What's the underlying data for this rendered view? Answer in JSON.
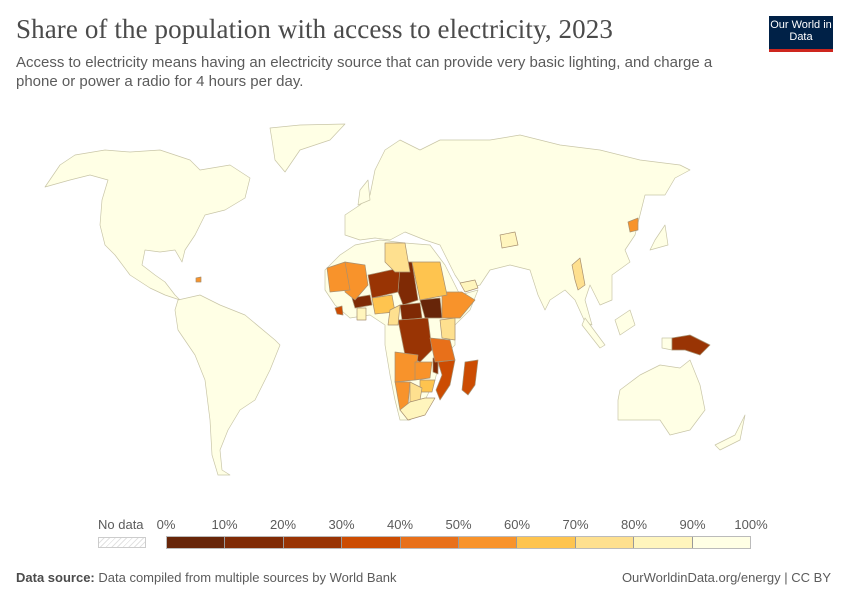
{
  "header": {
    "title": "Share of the population with access to electricity, 2023",
    "subtitle": "Access to electricity means having an electricity source that can provide very basic lighting, and charge a phone or power a radio for 4 hours per day.",
    "logo_text": "Our World in Data",
    "logo_colors": {
      "background": "#002147",
      "underline": "#ce261e"
    }
  },
  "footer": {
    "source_label": "Data source:",
    "source_text": "Data compiled from multiple sources by World Bank",
    "url": "OurWorldinData.org/energy | CC BY"
  },
  "chart_data": {
    "type": "choropleth-map",
    "title": "Share of the population with access to electricity, 2023",
    "year": 2023,
    "legend": {
      "no_data_label": "No data",
      "ticks": [
        "0%",
        "10%",
        "20%",
        "30%",
        "40%",
        "50%",
        "60%",
        "70%",
        "80%",
        "90%",
        "100%"
      ],
      "bins": [
        {
          "range": "0-10%",
          "color": "#672509"
        },
        {
          "range": "10-20%",
          "color": "#7f2a05"
        },
        {
          "range": "20-30%",
          "color": "#993404"
        },
        {
          "range": "30-40%",
          "color": "#cc4c02"
        },
        {
          "range": "40-50%",
          "color": "#e8701a"
        },
        {
          "range": "50-60%",
          "color": "#f8932b"
        },
        {
          "range": "60-70%",
          "color": "#fec44f"
        },
        {
          "range": "70-80%",
          "color": "#fee08f"
        },
        {
          "range": "80-90%",
          "color": "#fff5bd"
        },
        {
          "range": "90-100%",
          "color": "#ffffe5"
        }
      ],
      "placement": "bottom"
    },
    "default_range": "90-100%",
    "countries": [
      {
        "country": "South Sudan",
        "range": "0-10%"
      },
      {
        "country": "Chad",
        "range": "10-20%"
      },
      {
        "country": "Burkina Faso",
        "range": "10-20%"
      },
      {
        "country": "Central African Republic",
        "range": "10-20%"
      },
      {
        "country": "Niger",
        "range": "20-30%"
      },
      {
        "country": "Democratic Republic of Congo",
        "range": "20-30%"
      },
      {
        "country": "Papua New Guinea",
        "range": "20-30%"
      },
      {
        "country": "Malawi",
        "range": "10-20%"
      },
      {
        "country": "Mozambique",
        "range": "30-40%"
      },
      {
        "country": "Madagascar",
        "range": "30-40%"
      },
      {
        "country": "Sierra Leone",
        "range": "30-40%"
      },
      {
        "country": "Tanzania",
        "range": "40-50%"
      },
      {
        "country": "Mali",
        "range": "50-60%"
      },
      {
        "country": "Mauritania",
        "range": "50-60%"
      },
      {
        "country": "Ethiopia",
        "range": "50-60%"
      },
      {
        "country": "Angola",
        "range": "50-60%"
      },
      {
        "country": "Zambia",
        "range": "50-60%"
      },
      {
        "country": "Namibia",
        "range": "50-60%"
      },
      {
        "country": "North Korea",
        "range": "50-60%"
      },
      {
        "country": "Haiti",
        "range": "50-60%"
      },
      {
        "country": "Sudan",
        "range": "60-70%"
      },
      {
        "country": "Nigeria",
        "range": "60-70%"
      },
      {
        "country": "Zimbabwe",
        "range": "60-70%"
      },
      {
        "country": "Libya",
        "range": "70-80%"
      },
      {
        "country": "Kenya",
        "range": "70-80%"
      },
      {
        "country": "Cameroon",
        "range": "70-80%"
      },
      {
        "country": "Botswana",
        "range": "70-80%"
      },
      {
        "country": "Myanmar",
        "range": "70-80%"
      },
      {
        "country": "Ghana",
        "range": "80-90%"
      },
      {
        "country": "South Africa",
        "range": "80-90%"
      },
      {
        "country": "Afghanistan",
        "range": "80-90%"
      },
      {
        "country": "Yemen",
        "range": "80-90%"
      }
    ]
  }
}
